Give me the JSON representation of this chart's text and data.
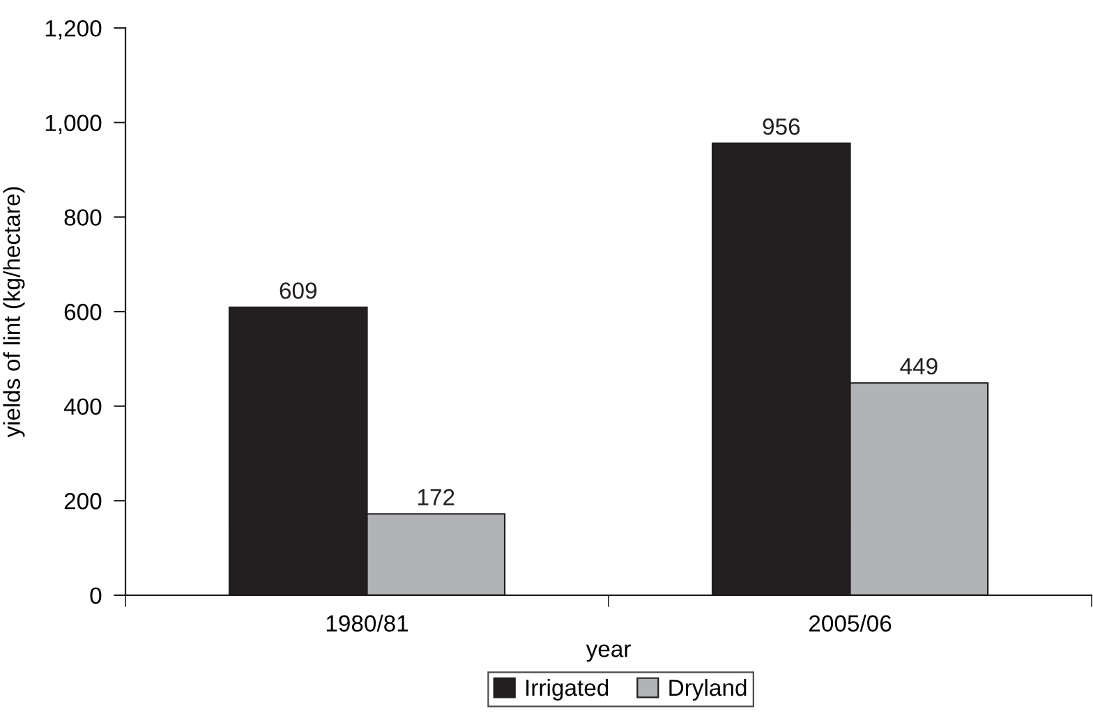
{
  "chart_data": {
    "type": "bar",
    "xlabel": "year",
    "ylabel": "yields of lint (kg/hectare)",
    "categories": [
      "1980/81",
      "2005/06"
    ],
    "series": [
      {
        "name": "Irrigated",
        "color": "#231f20",
        "values": [
          609,
          956
        ]
      },
      {
        "name": "Dryland",
        "color": "#b1b3b6",
        "values": [
          172,
          449
        ]
      }
    ],
    "ylim": [
      0,
      1200
    ],
    "yticks": [
      0,
      200,
      400,
      600,
      800,
      {
        "value": 1000,
        "label": "1,000"
      },
      {
        "value": 1200,
        "label": "1,200"
      }
    ],
    "data_labels": true,
    "grid": false,
    "legend": "bottom"
  }
}
